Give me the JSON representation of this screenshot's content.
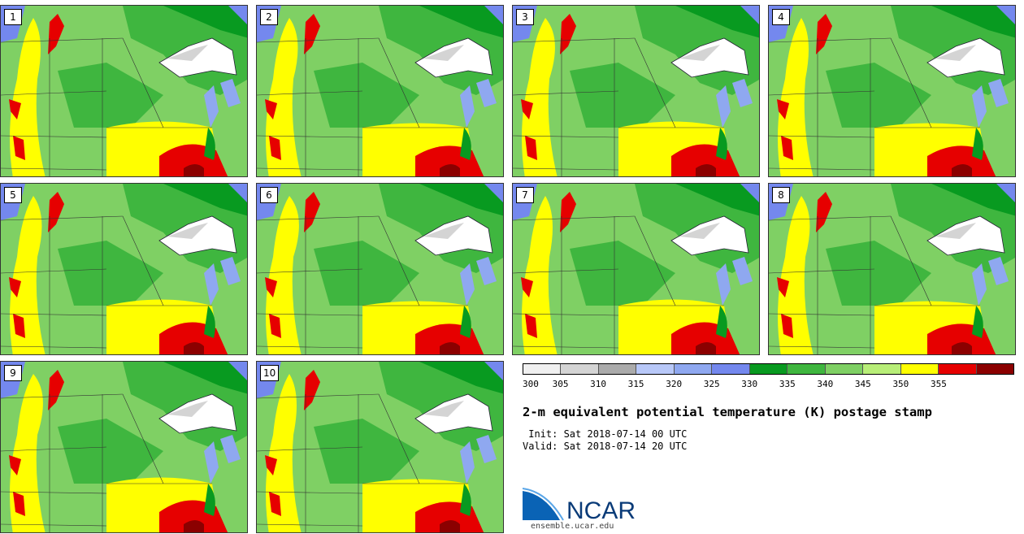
{
  "panels": [
    {
      "label": "1"
    },
    {
      "label": "2"
    },
    {
      "label": "3"
    },
    {
      "label": "4"
    },
    {
      "label": "5"
    },
    {
      "label": "6"
    },
    {
      "label": "7"
    },
    {
      "label": "8"
    },
    {
      "label": "9"
    },
    {
      "label": "10"
    }
  ],
  "colorbar": {
    "colors": [
      "#f0f0f0",
      "#d4d4d4",
      "#ababab",
      "#b8c8f8",
      "#8fa8f0",
      "#7488ee",
      "#089a20",
      "#3fb63f",
      "#7fd064",
      "#b8ee78",
      "#ffff00",
      "#e60000",
      "#8b0000"
    ],
    "labels": [
      "300",
      "305",
      "310",
      "315",
      "320",
      "325",
      "330",
      "335",
      "340",
      "345",
      "350",
      "355"
    ]
  },
  "title": "2-m equivalent potential temperature (K) postage stamp",
  "init_line": " Init: Sat 2018-07-14 00 UTC",
  "valid_line": "Valid: Sat 2018-07-14 20 UTC",
  "logo": {
    "text": "NCAR",
    "url": "ensemble.ucar.edu"
  }
}
